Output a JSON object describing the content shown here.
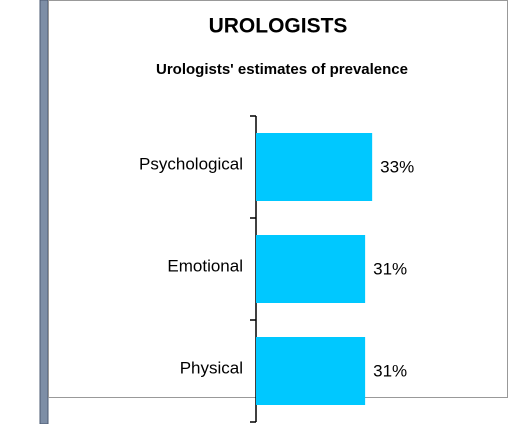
{
  "chart_data": {
    "type": "barh",
    "title": "UROLOGISTS",
    "subtitle": "Urologists' estimates of prevalence",
    "categories": [
      "Psychological",
      "Emotional",
      "Physical"
    ],
    "values": [
      33,
      31,
      31
    ],
    "value_labels": [
      "33%",
      "31%",
      "31%"
    ],
    "color": "#00c8ff"
  }
}
